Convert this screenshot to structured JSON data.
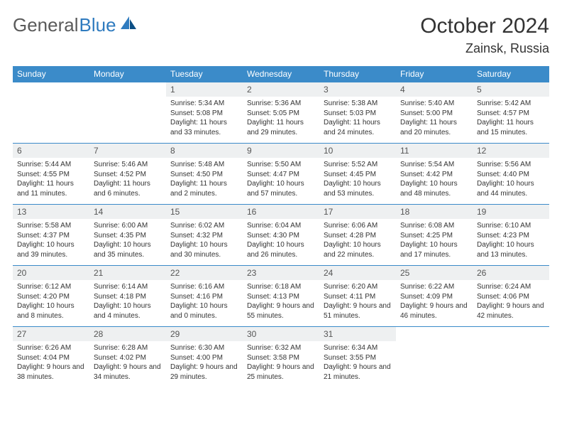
{
  "brand": {
    "part1": "General",
    "part2": "Blue"
  },
  "title": "October 2024",
  "location": "Zainsk, Russia",
  "colors": {
    "header_bg": "#3b8bc9",
    "header_text": "#ffffff",
    "daynum_bg": "#eef0f1",
    "daynum_text": "#555555",
    "body_text": "#333333",
    "row_border": "#3b8bc9",
    "page_bg": "#ffffff",
    "brand_gray": "#5a5a5a",
    "brand_blue": "#2f7bbf"
  },
  "typography": {
    "month_title_fontsize": 30,
    "location_fontsize": 18,
    "dayheader_fontsize": 12,
    "daynum_fontsize": 12,
    "body_fontsize": 10
  },
  "day_headers": [
    "Sunday",
    "Monday",
    "Tuesday",
    "Wednesday",
    "Thursday",
    "Friday",
    "Saturday"
  ],
  "weeks": [
    [
      null,
      null,
      {
        "n": "1",
        "sunrise": "5:34 AM",
        "sunset": "5:08 PM",
        "daylight": "11 hours and 33 minutes."
      },
      {
        "n": "2",
        "sunrise": "5:36 AM",
        "sunset": "5:05 PM",
        "daylight": "11 hours and 29 minutes."
      },
      {
        "n": "3",
        "sunrise": "5:38 AM",
        "sunset": "5:03 PM",
        "daylight": "11 hours and 24 minutes."
      },
      {
        "n": "4",
        "sunrise": "5:40 AM",
        "sunset": "5:00 PM",
        "daylight": "11 hours and 20 minutes."
      },
      {
        "n": "5",
        "sunrise": "5:42 AM",
        "sunset": "4:57 PM",
        "daylight": "11 hours and 15 minutes."
      }
    ],
    [
      {
        "n": "6",
        "sunrise": "5:44 AM",
        "sunset": "4:55 PM",
        "daylight": "11 hours and 11 minutes."
      },
      {
        "n": "7",
        "sunrise": "5:46 AM",
        "sunset": "4:52 PM",
        "daylight": "11 hours and 6 minutes."
      },
      {
        "n": "8",
        "sunrise": "5:48 AM",
        "sunset": "4:50 PM",
        "daylight": "11 hours and 2 minutes."
      },
      {
        "n": "9",
        "sunrise": "5:50 AM",
        "sunset": "4:47 PM",
        "daylight": "10 hours and 57 minutes."
      },
      {
        "n": "10",
        "sunrise": "5:52 AM",
        "sunset": "4:45 PM",
        "daylight": "10 hours and 53 minutes."
      },
      {
        "n": "11",
        "sunrise": "5:54 AM",
        "sunset": "4:42 PM",
        "daylight": "10 hours and 48 minutes."
      },
      {
        "n": "12",
        "sunrise": "5:56 AM",
        "sunset": "4:40 PM",
        "daylight": "10 hours and 44 minutes."
      }
    ],
    [
      {
        "n": "13",
        "sunrise": "5:58 AM",
        "sunset": "4:37 PM",
        "daylight": "10 hours and 39 minutes."
      },
      {
        "n": "14",
        "sunrise": "6:00 AM",
        "sunset": "4:35 PM",
        "daylight": "10 hours and 35 minutes."
      },
      {
        "n": "15",
        "sunrise": "6:02 AM",
        "sunset": "4:32 PM",
        "daylight": "10 hours and 30 minutes."
      },
      {
        "n": "16",
        "sunrise": "6:04 AM",
        "sunset": "4:30 PM",
        "daylight": "10 hours and 26 minutes."
      },
      {
        "n": "17",
        "sunrise": "6:06 AM",
        "sunset": "4:28 PM",
        "daylight": "10 hours and 22 minutes."
      },
      {
        "n": "18",
        "sunrise": "6:08 AM",
        "sunset": "4:25 PM",
        "daylight": "10 hours and 17 minutes."
      },
      {
        "n": "19",
        "sunrise": "6:10 AM",
        "sunset": "4:23 PM",
        "daylight": "10 hours and 13 minutes."
      }
    ],
    [
      {
        "n": "20",
        "sunrise": "6:12 AM",
        "sunset": "4:20 PM",
        "daylight": "10 hours and 8 minutes."
      },
      {
        "n": "21",
        "sunrise": "6:14 AM",
        "sunset": "4:18 PM",
        "daylight": "10 hours and 4 minutes."
      },
      {
        "n": "22",
        "sunrise": "6:16 AM",
        "sunset": "4:16 PM",
        "daylight": "10 hours and 0 minutes."
      },
      {
        "n": "23",
        "sunrise": "6:18 AM",
        "sunset": "4:13 PM",
        "daylight": "9 hours and 55 minutes."
      },
      {
        "n": "24",
        "sunrise": "6:20 AM",
        "sunset": "4:11 PM",
        "daylight": "9 hours and 51 minutes."
      },
      {
        "n": "25",
        "sunrise": "6:22 AM",
        "sunset": "4:09 PM",
        "daylight": "9 hours and 46 minutes."
      },
      {
        "n": "26",
        "sunrise": "6:24 AM",
        "sunset": "4:06 PM",
        "daylight": "9 hours and 42 minutes."
      }
    ],
    [
      {
        "n": "27",
        "sunrise": "6:26 AM",
        "sunset": "4:04 PM",
        "daylight": "9 hours and 38 minutes."
      },
      {
        "n": "28",
        "sunrise": "6:28 AM",
        "sunset": "4:02 PM",
        "daylight": "9 hours and 34 minutes."
      },
      {
        "n": "29",
        "sunrise": "6:30 AM",
        "sunset": "4:00 PM",
        "daylight": "9 hours and 29 minutes."
      },
      {
        "n": "30",
        "sunrise": "6:32 AM",
        "sunset": "3:58 PM",
        "daylight": "9 hours and 25 minutes."
      },
      {
        "n": "31",
        "sunrise": "6:34 AM",
        "sunset": "3:55 PM",
        "daylight": "9 hours and 21 minutes."
      },
      null,
      null
    ]
  ],
  "labels": {
    "sunrise": "Sunrise:",
    "sunset": "Sunset:",
    "daylight": "Daylight:"
  }
}
